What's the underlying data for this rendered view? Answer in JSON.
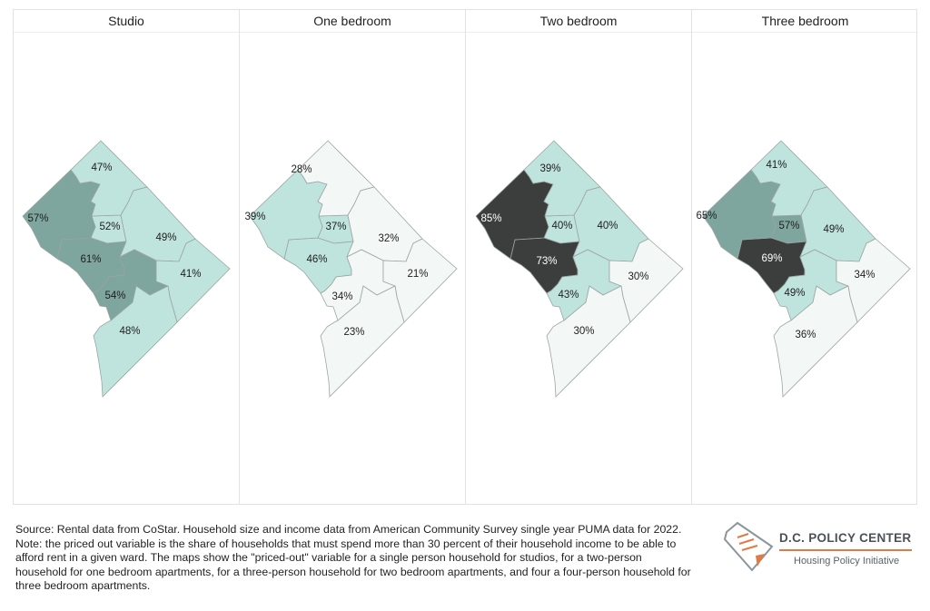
{
  "panels": [
    {
      "title": "Studio",
      "values": [
        "52%",
        "61%",
        "57%",
        "47%",
        "49%",
        "54%",
        "41%",
        "48%"
      ],
      "fills": [
        "#bfe3dd",
        "#7fa59f",
        "#7fa59f",
        "#bfe3dd",
        "#bfe3dd",
        "#7fa59f",
        "#bfe3dd",
        "#bfe3dd"
      ]
    },
    {
      "title": "One bedroom",
      "values": [
        "37%",
        "46%",
        "39%",
        "28%",
        "32%",
        "34%",
        "21%",
        "23%"
      ],
      "fills": [
        "#bfe3dd",
        "#bfe3dd",
        "#bfe3dd",
        "#f3f7f6",
        "#f3f7f6",
        "#f3f7f6",
        "#f3f7f6",
        "#f3f7f6"
      ]
    },
    {
      "title": "Two bedroom",
      "values": [
        "40%",
        "73%",
        "85%",
        "39%",
        "40%",
        "43%",
        "30%",
        "30%"
      ],
      "fills": [
        "#bfe3dd",
        "#3c3e3d",
        "#3c3e3d",
        "#bfe3dd",
        "#bfe3dd",
        "#bfe3dd",
        "#f3f7f6",
        "#f3f7f6"
      ]
    },
    {
      "title": "Three bedroom",
      "values": [
        "57%",
        "69%",
        "65%",
        "41%",
        "49%",
        "49%",
        "34%",
        "36%"
      ],
      "fills": [
        "#7fa59f",
        "#3c3e3d",
        "#7fa59f",
        "#bfe3dd",
        "#bfe3dd",
        "#bfe3dd",
        "#f3f7f6",
        "#f3f7f6"
      ]
    }
  ],
  "footer": {
    "source": "Source: Rental data from CoStar. Household size and income data from American Community Survey single year PUMA data for 2022.",
    "note": "Note: the priced out variable is the share of households that must spend more than 30 percent of their household income to be able to afford rent in a given ward. The maps show the \"priced-out\" variable for a single person household for studios, for a two-person household for one bedroom apartments, for a three-person household for two bedroom apartments, and four a four-person household for three bedroom apartments."
  },
  "logo": {
    "title": "D.C. POLICY CENTER",
    "subtitle": "Housing Policy Initiative",
    "accent": "#e07b47"
  }
}
